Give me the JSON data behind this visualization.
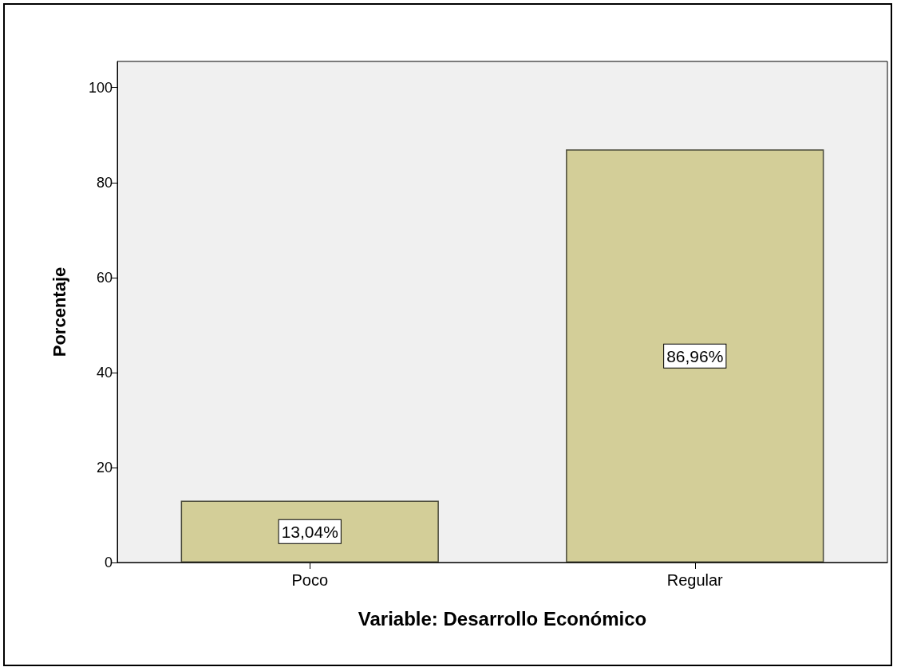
{
  "chart_data": {
    "type": "bar",
    "xlabel": "Variable: Desarrollo Económico",
    "ylabel": "Porcentaje",
    "categories": [
      "Poco",
      "Regular"
    ],
    "values": [
      13.04,
      86.96
    ],
    "value_labels": [
      "13,04%",
      "86,96%"
    ],
    "color": "#d3ce98",
    "ylim": [
      0,
      105.5
    ],
    "yticks": [
      0,
      20,
      40,
      60,
      80,
      100
    ],
    "grid": false
  }
}
